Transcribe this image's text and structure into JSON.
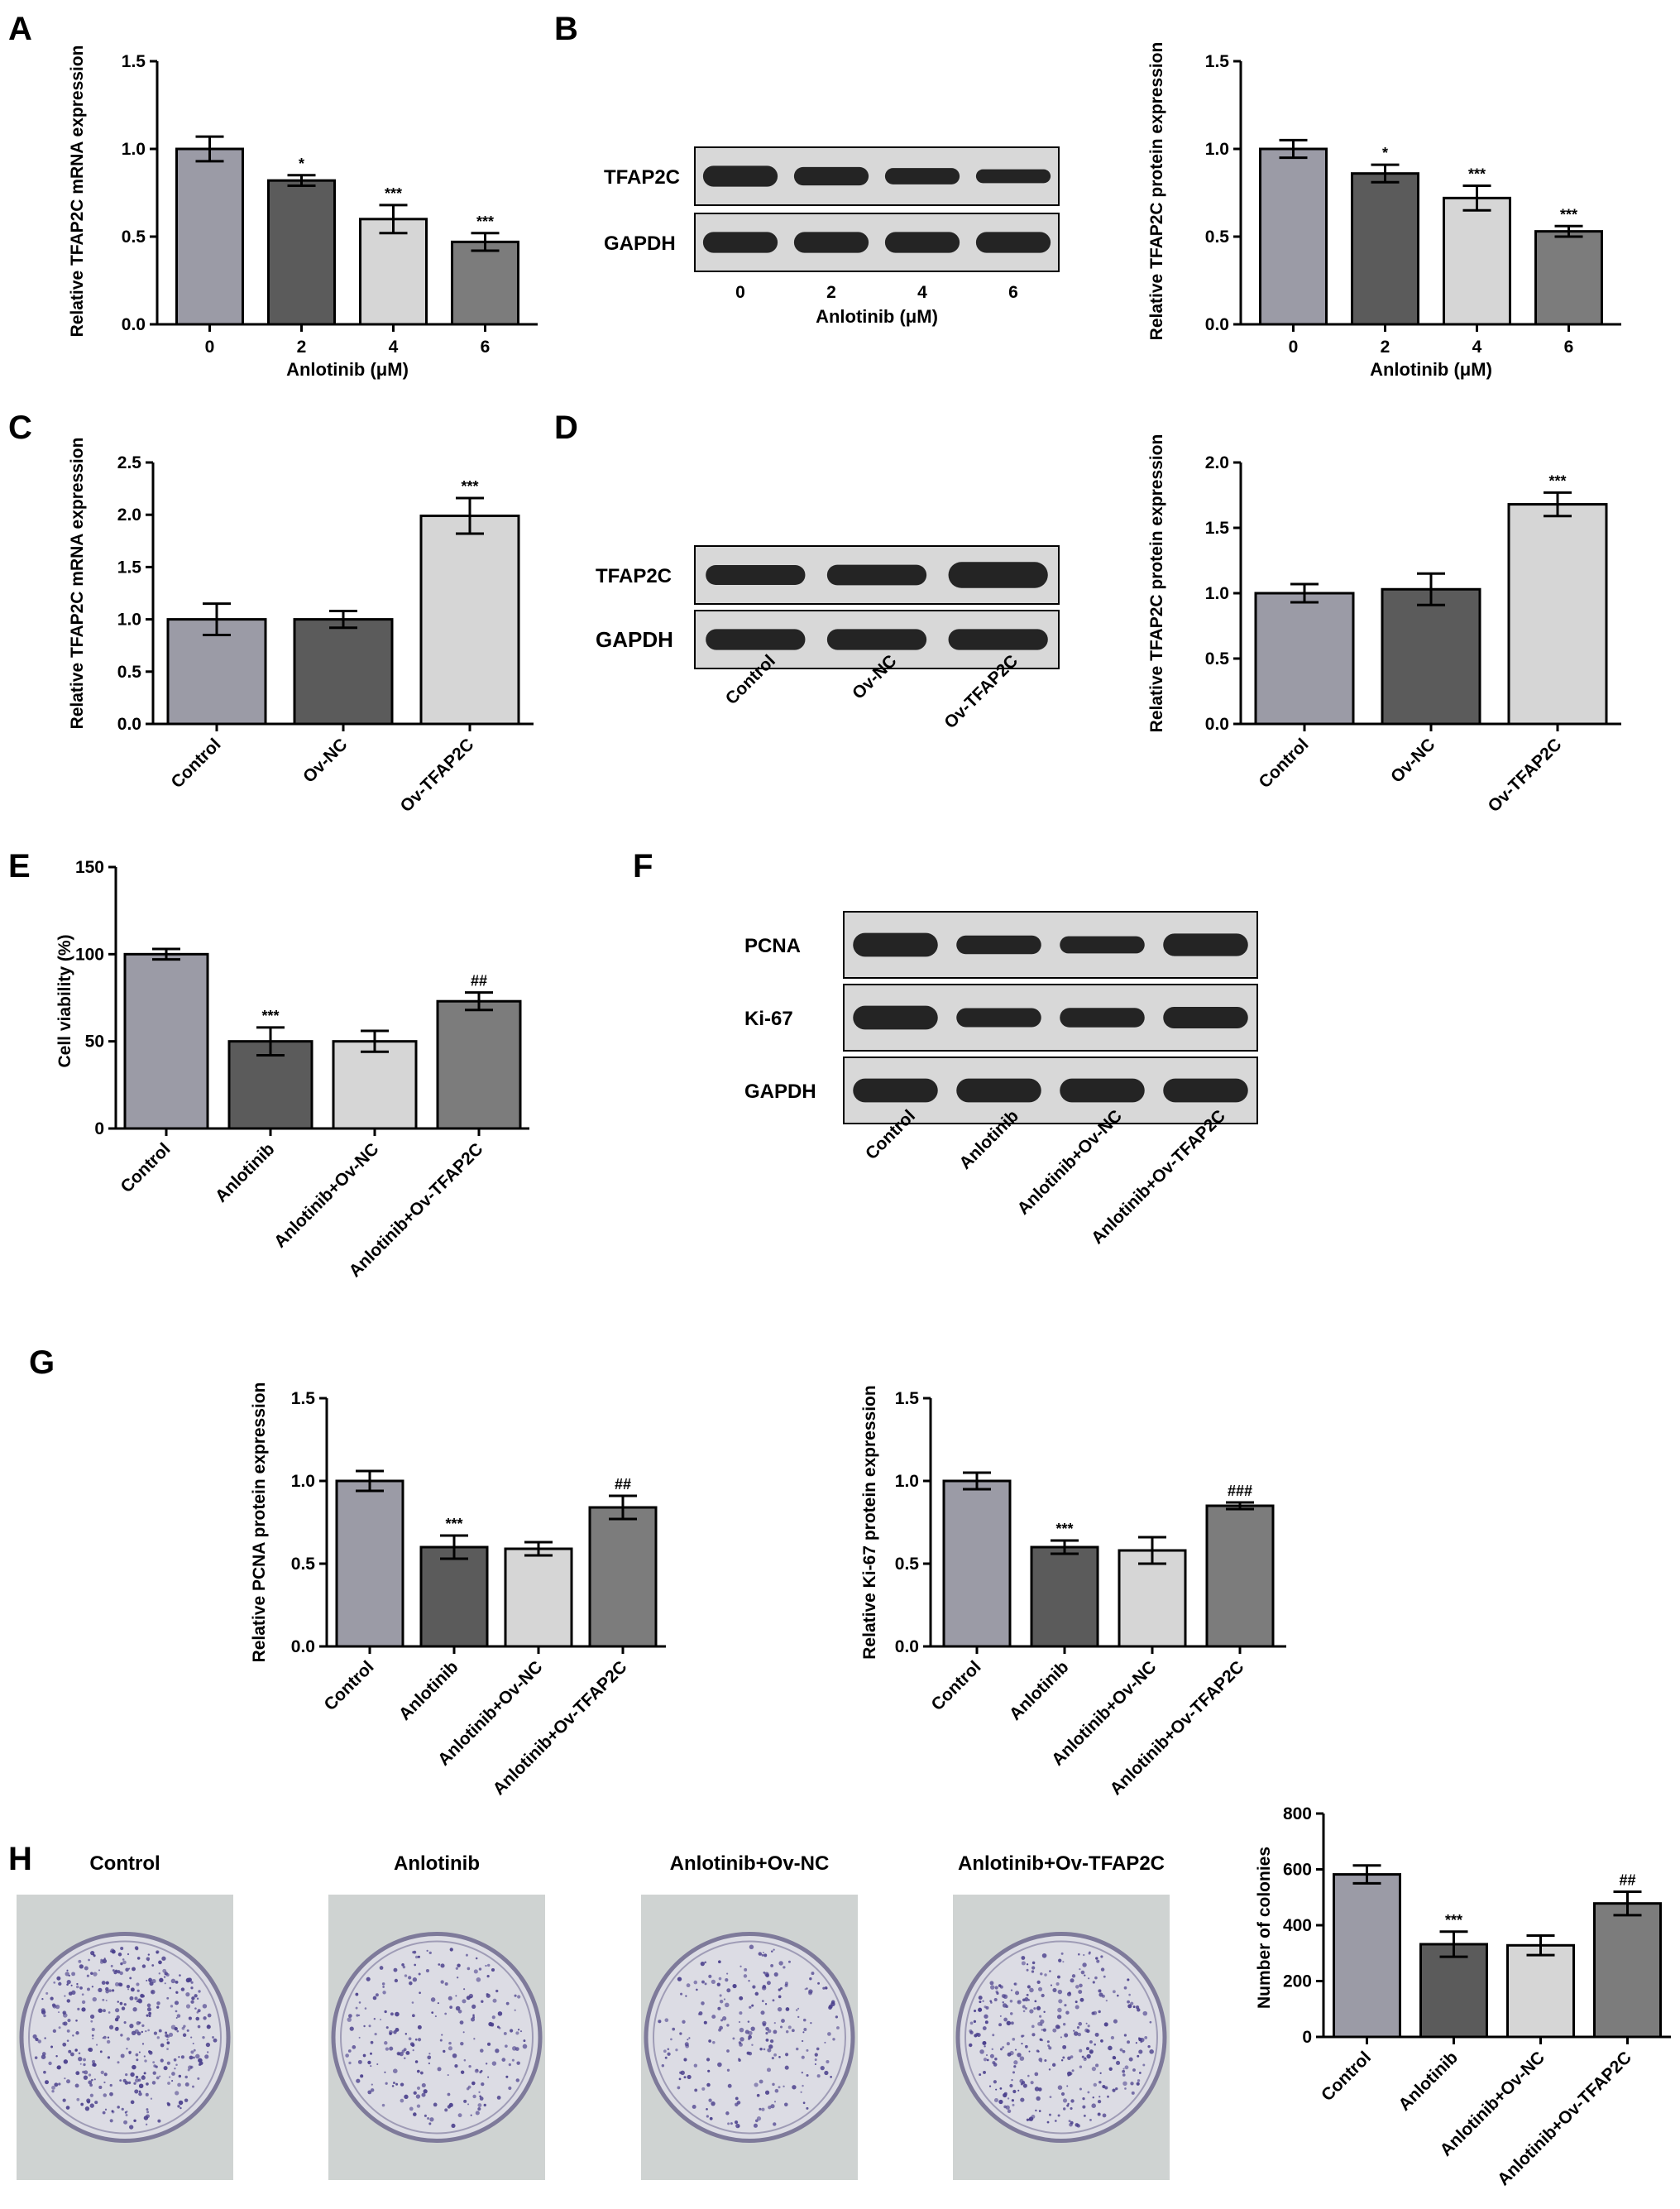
{
  "colors": {
    "bar1": "#9b9ba6",
    "bar2": "#5b5b5b",
    "bar3": "#d6d6d6",
    "bar4": "#7c7c7c",
    "axis": "#000000",
    "blot_bg": "#d8d8d8",
    "band": "#111111",
    "plate_bg": "#cfd3d2",
    "colony": "#4a3f8c"
  },
  "panel_labels": [
    "A",
    "B",
    "C",
    "D",
    "E",
    "F",
    "G",
    "H"
  ],
  "chart_data": [
    {
      "id": "A",
      "type": "bar",
      "categories": [
        "0",
        "2",
        "4",
        "6"
      ],
      "values": [
        1.0,
        0.82,
        0.6,
        0.47
      ],
      "errors": [
        0.07,
        0.03,
        0.08,
        0.05
      ],
      "significance": [
        "",
        "*",
        "***",
        "***"
      ],
      "ylabel": "Relative TFAP2C mRNA expression",
      "xlabel": "Anlotinib (μM)",
      "ylim": [
        0,
        1.5
      ],
      "yticks": [
        "0.0",
        "0.5",
        "1.0",
        "1.5"
      ]
    },
    {
      "id": "B",
      "type": "bar",
      "categories": [
        "0",
        "2",
        "4",
        "6"
      ],
      "values": [
        1.0,
        0.86,
        0.72,
        0.53
      ],
      "errors": [
        0.05,
        0.05,
        0.07,
        0.03
      ],
      "significance": [
        "",
        "*",
        "***",
        "***"
      ],
      "ylabel": "Relative TFAP2C protein expression",
      "xlabel": "Anlotinib (μM)",
      "ylim": [
        0,
        1.5
      ],
      "yticks": [
        "0.0",
        "0.5",
        "1.0",
        "1.5"
      ]
    },
    {
      "id": "C",
      "type": "bar",
      "categories": [
        "Control",
        "Ov-NC",
        "Ov-TFAP2C"
      ],
      "values": [
        1.0,
        1.0,
        1.99
      ],
      "errors": [
        0.15,
        0.08,
        0.17
      ],
      "significance": [
        "",
        "",
        "***"
      ],
      "ylabel": "Relative TFAP2C mRNA expression",
      "xlabel": "",
      "ylim": [
        0,
        2.5
      ],
      "yticks": [
        "0.0",
        "0.5",
        "1.0",
        "1.5",
        "2.0",
        "2.5"
      ]
    },
    {
      "id": "D",
      "type": "bar",
      "categories": [
        "Control",
        "Ov-NC",
        "Ov-TFAP2C"
      ],
      "values": [
        1.0,
        1.03,
        1.68
      ],
      "errors": [
        0.07,
        0.12,
        0.09
      ],
      "significance": [
        "",
        "",
        "***"
      ],
      "ylabel": "Relative TFAP2C protein expression",
      "xlabel": "",
      "ylim": [
        0,
        2.0
      ],
      "yticks": [
        "0.0",
        "0.5",
        "1.0",
        "1.5",
        "2.0"
      ]
    },
    {
      "id": "E",
      "type": "bar",
      "categories": [
        "Control",
        "Anlotinib",
        "Anlotinib+Ov-NC",
        "Anlotinib+Ov-TFAP2C"
      ],
      "values": [
        100,
        50,
        50,
        73
      ],
      "errors": [
        3,
        8,
        6,
        5
      ],
      "significance": [
        "",
        "***",
        "",
        "##"
      ],
      "ylabel": "Cell viability (%)",
      "xlabel": "",
      "ylim": [
        0,
        150
      ],
      "yticks": [
        "0",
        "50",
        "100",
        "150"
      ]
    },
    {
      "id": "G1",
      "type": "bar",
      "categories": [
        "Control",
        "Anlotinib",
        "Anlotinib+Ov-NC",
        "Anlotinib+Ov-TFAP2C"
      ],
      "values": [
        1.0,
        0.6,
        0.59,
        0.84
      ],
      "errors": [
        0.06,
        0.07,
        0.04,
        0.07
      ],
      "significance": [
        "",
        "***",
        "",
        "##"
      ],
      "ylabel": "Relative PCNA protein expression",
      "xlabel": "",
      "ylim": [
        0,
        1.5
      ],
      "yticks": [
        "0.0",
        "0.5",
        "1.0",
        "1.5"
      ]
    },
    {
      "id": "G2",
      "type": "bar",
      "categories": [
        "Control",
        "Anlotinib",
        "Anlotinib+Ov-NC",
        "Anlotinib+Ov-TFAP2C"
      ],
      "values": [
        1.0,
        0.6,
        0.58,
        0.85
      ],
      "errors": [
        0.05,
        0.04,
        0.08,
        0.02
      ],
      "significance": [
        "",
        "***",
        "",
        "###"
      ],
      "ylabel": "Relative Ki-67 protein expression",
      "xlabel": "",
      "ylim": [
        0,
        1.5
      ],
      "yticks": [
        "0.0",
        "0.5",
        "1.0",
        "1.5"
      ]
    },
    {
      "id": "H",
      "type": "bar",
      "categories": [
        "Control",
        "Anlotinib",
        "Anlotinib+Ov-NC",
        "Anlotinib+Ov-TFAP2C"
      ],
      "values": [
        582,
        332,
        328,
        478
      ],
      "errors": [
        32,
        45,
        35,
        42
      ],
      "significance": [
        "",
        "***",
        "",
        "##"
      ],
      "ylabel": "Number of colonies",
      "xlabel": "",
      "ylim": [
        0,
        800
      ],
      "yticks": [
        "0",
        "200",
        "400",
        "600",
        "800"
      ]
    }
  ],
  "blots": [
    {
      "id": "B",
      "rows": [
        {
          "label": "TFAP2C",
          "intensity": [
            1.0,
            0.88,
            0.78,
            0.66
          ]
        },
        {
          "label": "GAPDH",
          "intensity": [
            1.0,
            1.0,
            1.0,
            1.0
          ]
        }
      ],
      "lane_labels": [
        "0",
        "2",
        "4",
        "6"
      ],
      "xlabel": "Anlotinib (μM)"
    },
    {
      "id": "D",
      "rows": [
        {
          "label": "TFAP2C",
          "intensity": [
            0.95,
            0.98,
            1.25
          ]
        },
        {
          "label": "GAPDH",
          "intensity": [
            1.0,
            1.0,
            1.0
          ]
        }
      ],
      "lane_labels": [
        "Control",
        "Ov-NC",
        "Ov-TFAP2C"
      ]
    },
    {
      "id": "F",
      "rows": [
        {
          "label": "PCNA",
          "intensity": [
            1.0,
            0.78,
            0.72,
            0.95
          ]
        },
        {
          "label": "Ki-67",
          "intensity": [
            1.0,
            0.8,
            0.82,
            0.9
          ]
        },
        {
          "label": "GAPDH",
          "intensity": [
            1.0,
            1.0,
            1.0,
            1.0
          ]
        }
      ],
      "lane_labels": [
        "Control",
        "Anlotinib",
        "Anlotinib+Ov-NC",
        "Anlotinib+Ov-TFAP2C"
      ]
    }
  ],
  "plates": {
    "labels": [
      "Control",
      "Anlotinib",
      "Anlotinib+Ov-NC",
      "Anlotinib+Ov-TFAP2C"
    ],
    "colony_counts": [
      582,
      332,
      328,
      478
    ]
  }
}
